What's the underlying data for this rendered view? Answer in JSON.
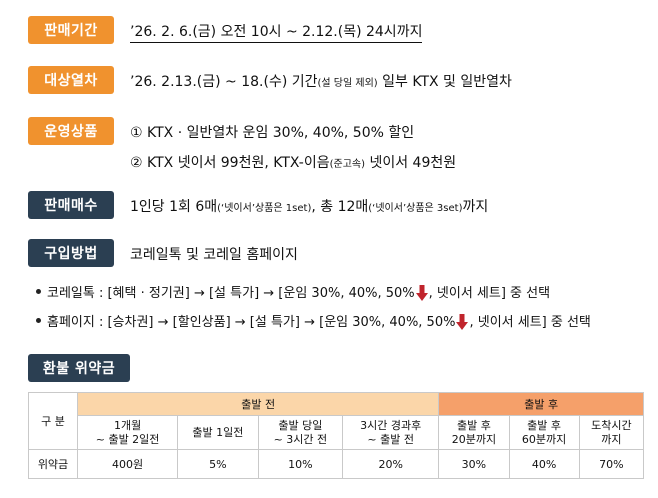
{
  "sale_period": {
    "label": "판매기간",
    "value": "’26. 2. 6.(금) 오전 10시 ~ 2.12.(목) 24시까지"
  },
  "target_trains": {
    "label": "대상열차",
    "value_prefix": "’26. 2.13.(금) ~ 18.(수) 기간",
    "value_small": "(설 당일 제외)",
    "value_suffix": " 일부 KTX 및 일반열차"
  },
  "products": {
    "label": "운영상품",
    "line1": "① KTX · 일반열차 운임 30%, 40%, 50% 할인",
    "line2_prefix": "② KTX 넷이서 99천원, KTX-이음",
    "line2_small": "(준고속)",
    "line2_suffix": " 넷이서 49천원"
  },
  "sale_count": {
    "label": "판매매수",
    "p1": "1인당 1회 6매",
    "s1": "(‘넷이서’상품은 1set)",
    "p2": ", 총 12매",
    "s2": "(‘넷이서’상품은 3set)",
    "p3": "까지"
  },
  "purchase": {
    "label": "구입방법",
    "value": "코레일톡 및 코레일 홈페이지",
    "bullet1_prefix": "코레일톡 : [혜택 · 정기권] → [설 특가] → [운임 30%, 40%, 50%",
    "bullet1_suffix": ", 넷이서 세트] 중 선택",
    "bullet2_prefix": "홈페이지 : [승차권] → [할인상품] → [설 특가] → [운임 30%, 40%, 50%",
    "bullet2_suffix": ", 넷이서 세트] 중 선택"
  },
  "refund": {
    "label": "환불 위약금",
    "gubun": "구 분",
    "before": "출발 전",
    "after": "출발 후",
    "columns": [
      {
        "l1": "1개월",
        "l2": "~ 출발 2일전"
      },
      {
        "l1": "출발 1일전",
        "l2": ""
      },
      {
        "l1": "출발 당일",
        "l2": "~ 3시간 전"
      },
      {
        "l1": "3시간 경과후",
        "l2": "~ 출발 전"
      },
      {
        "l1": "출발 후",
        "l2": "20분까지"
      },
      {
        "l1": "출발 후",
        "l2": "60분까지"
      },
      {
        "l1": "도착시간",
        "l2": "까지"
      }
    ],
    "row_label": "위약금",
    "values": [
      "400원",
      "5%",
      "10%",
      "20%",
      "30%",
      "40%",
      "70%"
    ]
  },
  "colors": {
    "orange": "#f0922e",
    "navy": "#2b3f52",
    "arrow": "#c0242c"
  }
}
